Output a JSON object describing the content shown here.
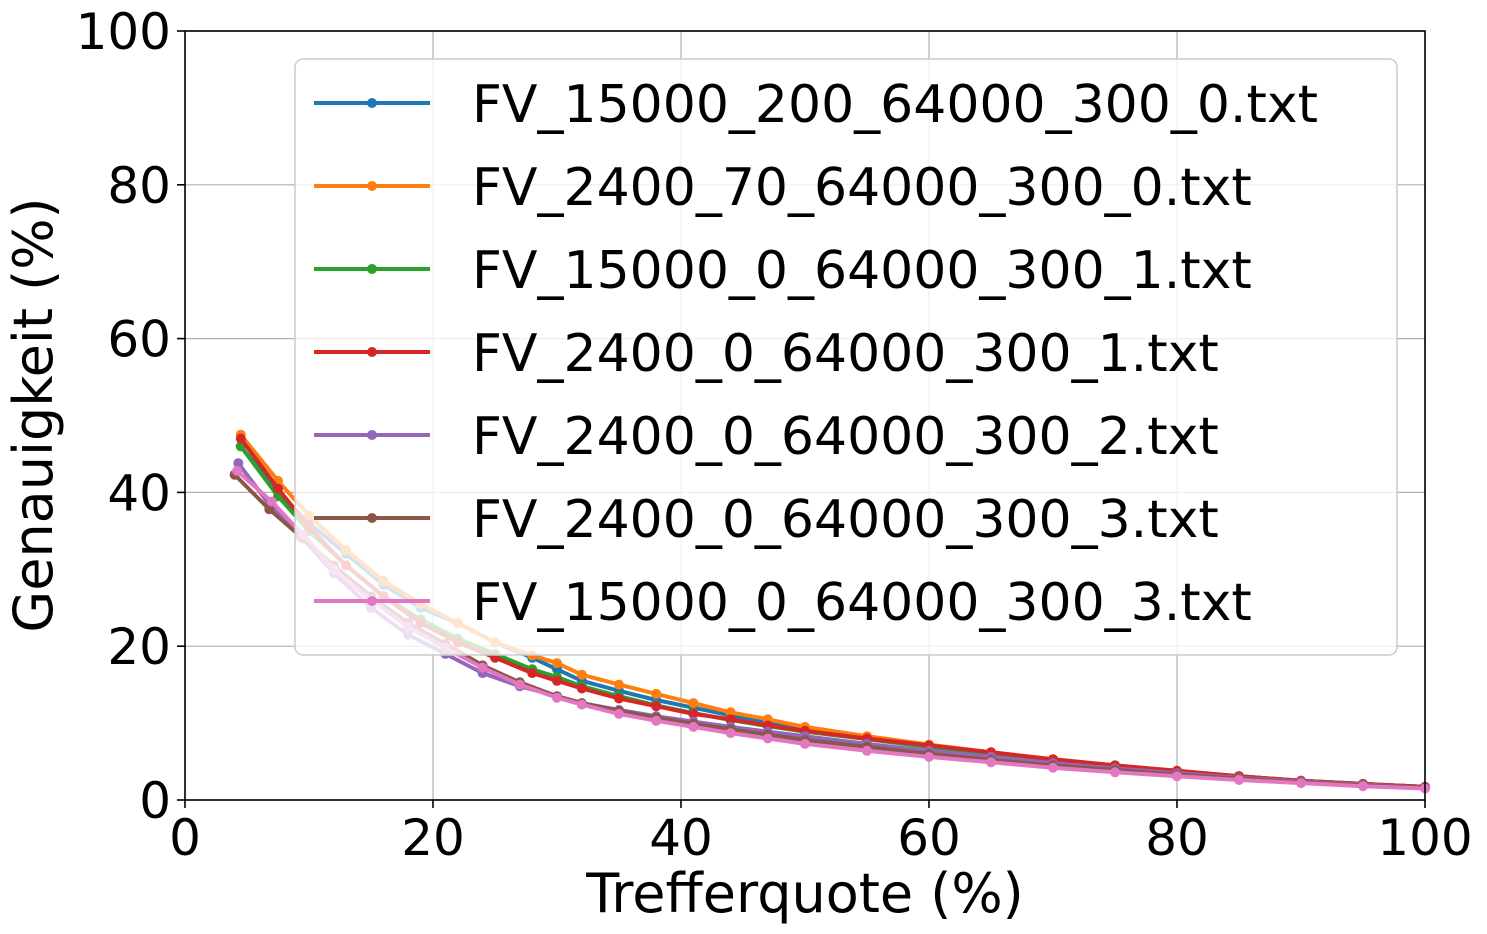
{
  "chart_data": {
    "type": "line",
    "title": "",
    "xlabel": "Trefferquote (%)",
    "ylabel": "Genauigkeit (%)",
    "xlim": [
      0,
      100
    ],
    "ylim": [
      0,
      100
    ],
    "xticks": [
      "0",
      "20",
      "40",
      "60",
      "80",
      "100"
    ],
    "yticks": [
      "0",
      "20",
      "40",
      "60",
      "80",
      "100"
    ],
    "grid": true,
    "legend_position": "upper-right",
    "series": [
      {
        "name": "FV_15000_200_64000_300_0.txt",
        "color": "#1f77b4",
        "x": [
          4.5,
          7.5,
          10,
          13,
          16,
          19,
          22,
          25,
          28,
          30,
          32,
          35,
          38,
          41,
          44,
          47,
          50,
          55,
          60,
          65,
          70,
          75,
          80,
          85,
          90,
          95,
          100
        ],
        "y": [
          46,
          40,
          36,
          32,
          28,
          25,
          23,
          20.5,
          18.5,
          17,
          15.5,
          14.2,
          13,
          12,
          11,
          10.2,
          9.3,
          8.2,
          7.1,
          6.2,
          5.2,
          4.5,
          3.7,
          3.1,
          2.5,
          2.1,
          1.7
        ]
      },
      {
        "name": "FV_2400_70_64000_300_0.txt",
        "color": "#ff7f0e",
        "x": [
          4.5,
          7.5,
          10,
          13,
          16,
          19,
          22,
          25,
          28,
          30,
          32,
          35,
          38,
          41,
          44,
          47,
          50,
          55,
          60,
          65,
          70,
          75,
          80,
          85,
          90,
          95,
          100
        ],
        "y": [
          47.5,
          41.5,
          37,
          32.5,
          28.5,
          25.5,
          23,
          20.5,
          18.8,
          17.8,
          16.3,
          15,
          13.8,
          12.6,
          11.4,
          10.5,
          9.5,
          8.3,
          7.2,
          6.2,
          5.3,
          4.5,
          3.8,
          3.1,
          2.5,
          2.1,
          1.7
        ]
      },
      {
        "name": "FV_15000_0_64000_300_1.txt",
        "color": "#2ca02c",
        "x": [
          4.5,
          7.5,
          10,
          13,
          16,
          19,
          22,
          25,
          28,
          30,
          32,
          35,
          38,
          41,
          44,
          47,
          50,
          55,
          60,
          65,
          70,
          75,
          80,
          85,
          90,
          95,
          100
        ],
        "y": [
          46,
          39.5,
          35,
          30.5,
          26.5,
          23.5,
          21,
          19,
          17,
          16,
          14.8,
          13.5,
          12.3,
          11.3,
          10.4,
          9.6,
          8.9,
          7.9,
          6.9,
          6,
          5.2,
          4.4,
          3.7,
          3.1,
          2.5,
          2.1,
          1.7
        ]
      },
      {
        "name": "FV_2400_0_64000_300_1.txt",
        "color": "#d62728",
        "x": [
          4.5,
          7.5,
          10,
          13,
          16,
          19,
          22,
          25,
          28,
          30,
          32,
          35,
          38,
          41,
          44,
          47,
          50,
          55,
          60,
          65,
          70,
          75,
          80,
          85,
          90,
          95,
          100
        ],
        "y": [
          47,
          40.5,
          35.5,
          30.5,
          26.5,
          23,
          20.5,
          18.5,
          16.5,
          15.5,
          14.5,
          13.2,
          12.2,
          11.2,
          10.5,
          9.7,
          9,
          8,
          7.1,
          6.2,
          5.3,
          4.5,
          3.8,
          3.1,
          2.5,
          2.1,
          1.7
        ]
      },
      {
        "name": "FV_2400_0_64000_300_2.txt",
        "color": "#9467bd",
        "x": [
          4.3,
          7,
          9.5,
          12,
          15,
          18,
          21,
          24,
          27,
          30,
          32,
          35,
          38,
          41,
          44,
          47,
          50,
          55,
          60,
          65,
          70,
          75,
          80,
          85,
          90,
          95,
          100
        ],
        "y": [
          43.8,
          38,
          34,
          29.5,
          25,
          21.5,
          19,
          16.5,
          14.8,
          13.5,
          12.6,
          11.7,
          10.9,
          10.2,
          9.5,
          8.9,
          8.3,
          7.3,
          6.4,
          5.6,
          4.8,
          4.1,
          3.5,
          2.9,
          2.4,
          2,
          1.6
        ]
      },
      {
        "name": "FV_2400_0_64000_300_3.txt",
        "color": "#8c564b",
        "x": [
          4,
          6.8,
          9.3,
          12,
          15,
          18,
          21,
          24,
          27,
          30,
          32,
          35,
          38,
          41,
          44,
          47,
          50,
          55,
          60,
          65,
          70,
          75,
          80,
          85,
          90,
          95,
          100
        ],
        "y": [
          42.3,
          37.8,
          34.3,
          30.5,
          26.5,
          23,
          20.3,
          17.5,
          15.3,
          13.5,
          12.6,
          11.6,
          10.7,
          9.9,
          9.2,
          8.5,
          7.8,
          6.9,
          6,
          5.2,
          4.5,
          3.9,
          3.3,
          2.8,
          2.3,
          1.9,
          1.6
        ]
      },
      {
        "name": "FV_15000_0_64000_300_3.txt",
        "color": "#e377c2",
        "x": [
          4.2,
          7,
          9.5,
          12,
          15,
          18,
          21,
          24,
          27,
          30,
          32,
          35,
          38,
          41,
          44,
          47,
          50,
          55,
          60,
          65,
          70,
          75,
          80,
          85,
          90,
          95,
          100
        ],
        "y": [
          42.8,
          38.8,
          34.5,
          30,
          26,
          22.5,
          19.8,
          17.2,
          15,
          13.3,
          12.4,
          11.2,
          10.3,
          9.5,
          8.7,
          8,
          7.3,
          6.4,
          5.6,
          4.9,
          4.2,
          3.6,
          3.1,
          2.6,
          2.2,
          1.8,
          1.5
        ]
      }
    ]
  }
}
